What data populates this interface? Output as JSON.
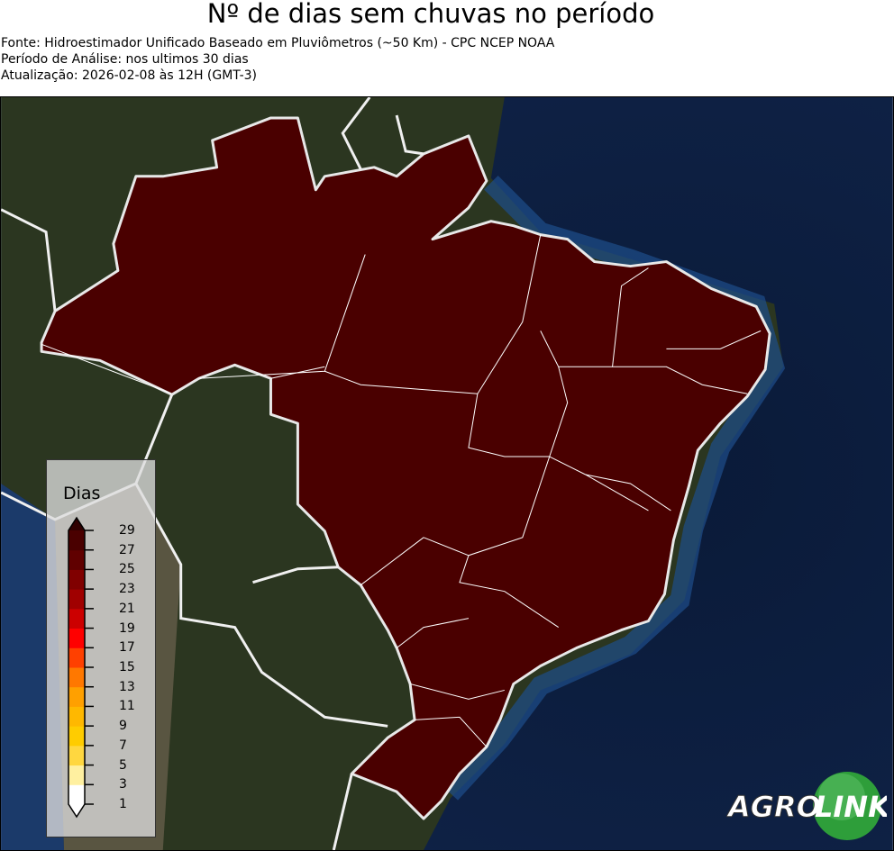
{
  "header": {
    "title": "Nº de dias sem chuvas no período",
    "source": "Fonte: Hidroestimador Unificado Baseado em Pluviômetros (~50 Km) - CPC NCEP NOAA",
    "period": "Período de Análise: nos ultimos 30 dias",
    "updated": "Atualização: 2026-02-08 às 12H (GMT-3)"
  },
  "map": {
    "region": "Brasil",
    "fill_color": "#4a0000",
    "ocean_color": "#0d2a55",
    "land_color": "#2f3a22"
  },
  "legend": {
    "title": "Dias",
    "ticks": [
      "29",
      "27",
      "25",
      "23",
      "21",
      "19",
      "17",
      "15",
      "13",
      "11",
      "9",
      "7",
      "5",
      "3",
      "1"
    ],
    "colors": [
      "#ffffff",
      "#fff0a0",
      "#ffd740",
      "#ffcc00",
      "#ffb800",
      "#ffa000",
      "#ff7800",
      "#ff4000",
      "#ff0000",
      "#cc0000",
      "#a00000",
      "#800000",
      "#600000",
      "#4a0000",
      "#300000"
    ]
  },
  "logo": {
    "text_left": "AGRO",
    "text_right": "LINK",
    "color": "#2e9e3a"
  }
}
